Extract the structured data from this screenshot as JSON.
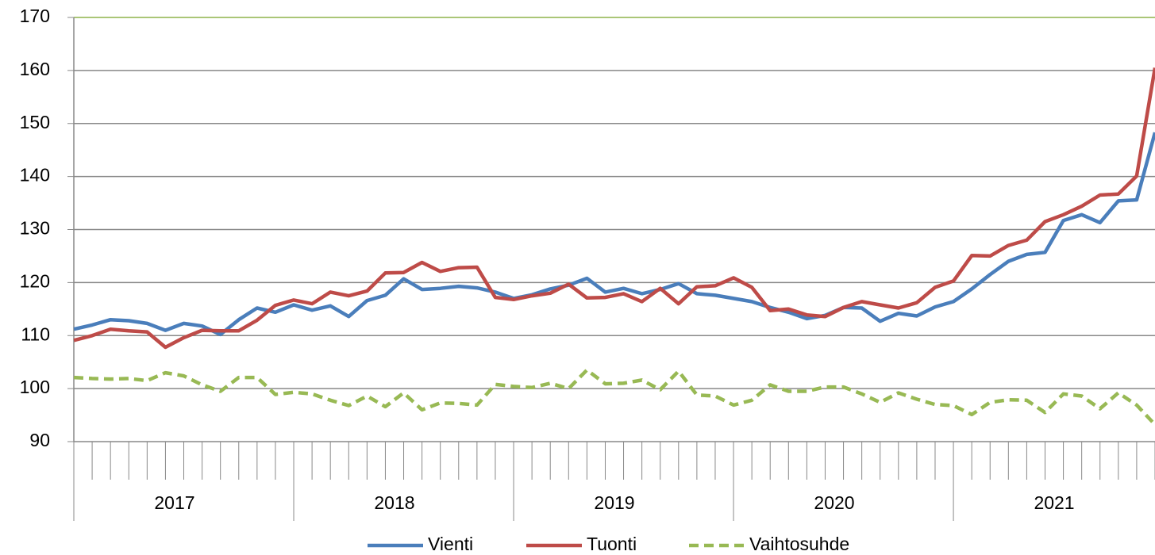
{
  "chart_data": {
    "type": "line",
    "categories": [
      null,
      null,
      null,
      null,
      null,
      null,
      null,
      null,
      null,
      null,
      null,
      null,
      null,
      null,
      null,
      null,
      null,
      null,
      null,
      null,
      null,
      null,
      null,
      null,
      null,
      null,
      null,
      null,
      null,
      null,
      null,
      null,
      null,
      null,
      null,
      null,
      null,
      null,
      null,
      null,
      null,
      null,
      null,
      null,
      null,
      null,
      null,
      null,
      null,
      null,
      null,
      null,
      null,
      null,
      null,
      null,
      null,
      null,
      null,
      null
    ],
    "x_groups": [
      "2017",
      "2018",
      "2019",
      "2020",
      "2021"
    ],
    "series": [
      {
        "name": "Vienti",
        "color": "#4a7ebb",
        "dashed": false,
        "values": [
          111.2,
          112,
          113,
          112.8,
          112.3,
          111,
          112.3,
          111.8,
          110.2,
          113,
          115.2,
          114.4,
          115.8,
          114.8,
          115.6,
          113.6,
          116.6,
          117.6,
          120.7,
          118.7,
          118.9,
          119.3,
          119,
          118.2,
          117,
          117.7,
          118.8,
          119.5,
          120.8,
          118.2,
          118.9,
          117.9,
          118.7,
          119.8,
          117.9,
          117.6,
          117,
          116.4,
          115.3,
          114.4,
          113.2,
          113.8,
          115.3,
          115.2,
          112.7,
          114.2,
          113.7,
          115.4,
          116.4,
          118.8,
          121.5,
          124,
          125.3,
          125.7,
          131.7,
          132.8,
          131.3,
          135.4,
          135.6,
          148.3
        ]
      },
      {
        "name": "Tuonti",
        "color": "#be4b48",
        "dashed": false,
        "values": [
          109.1,
          110,
          111.2,
          110.9,
          110.7,
          107.8,
          109.6,
          111,
          110.9,
          110.9,
          112.9,
          115.7,
          116.7,
          116,
          118.2,
          117.5,
          118.4,
          121.8,
          121.9,
          123.8,
          122.1,
          122.8,
          122.9,
          117.2,
          116.8,
          117.5,
          118,
          119.7,
          117.1,
          117.2,
          117.9,
          116.4,
          118.9,
          116,
          119.2,
          119.4,
          120.9,
          119.1,
          114.7,
          115,
          113.9,
          113.6,
          115.3,
          116.4,
          115.8,
          115.2,
          116.2,
          119.1,
          120.3,
          125.1,
          125,
          127,
          128,
          131.5,
          132.8,
          134.4,
          136.5,
          136.7,
          140.1,
          160.5
        ]
      },
      {
        "name": "Vaihtosuhde",
        "color": "#98b954",
        "dashed": true,
        "values": [
          102.1,
          101.9,
          101.8,
          101.9,
          101.5,
          103,
          102.4,
          100.7,
          99.5,
          102.1,
          102.1,
          98.9,
          99.3,
          99,
          97.8,
          96.8,
          98.6,
          96.6,
          99.2,
          96,
          97.3,
          97.2,
          96.9,
          100.8,
          100.4,
          100.2,
          101,
          100,
          103.5,
          100.9,
          101,
          101.6,
          99.8,
          103.3,
          98.8,
          98.6,
          96.9,
          97.8,
          100.7,
          99.5,
          99.5,
          100.3,
          100.3,
          99,
          97.4,
          99.2,
          98,
          97,
          96.8,
          95.1,
          97.4,
          97.9,
          97.8,
          95.5,
          99,
          98.6,
          96.2,
          99.2,
          96.9,
          93.2
        ]
      }
    ],
    "ylim": [
      90,
      170
    ],
    "yticks": [
      90,
      100,
      110,
      120,
      130,
      140,
      150,
      160,
      170
    ],
    "grid": true
  }
}
